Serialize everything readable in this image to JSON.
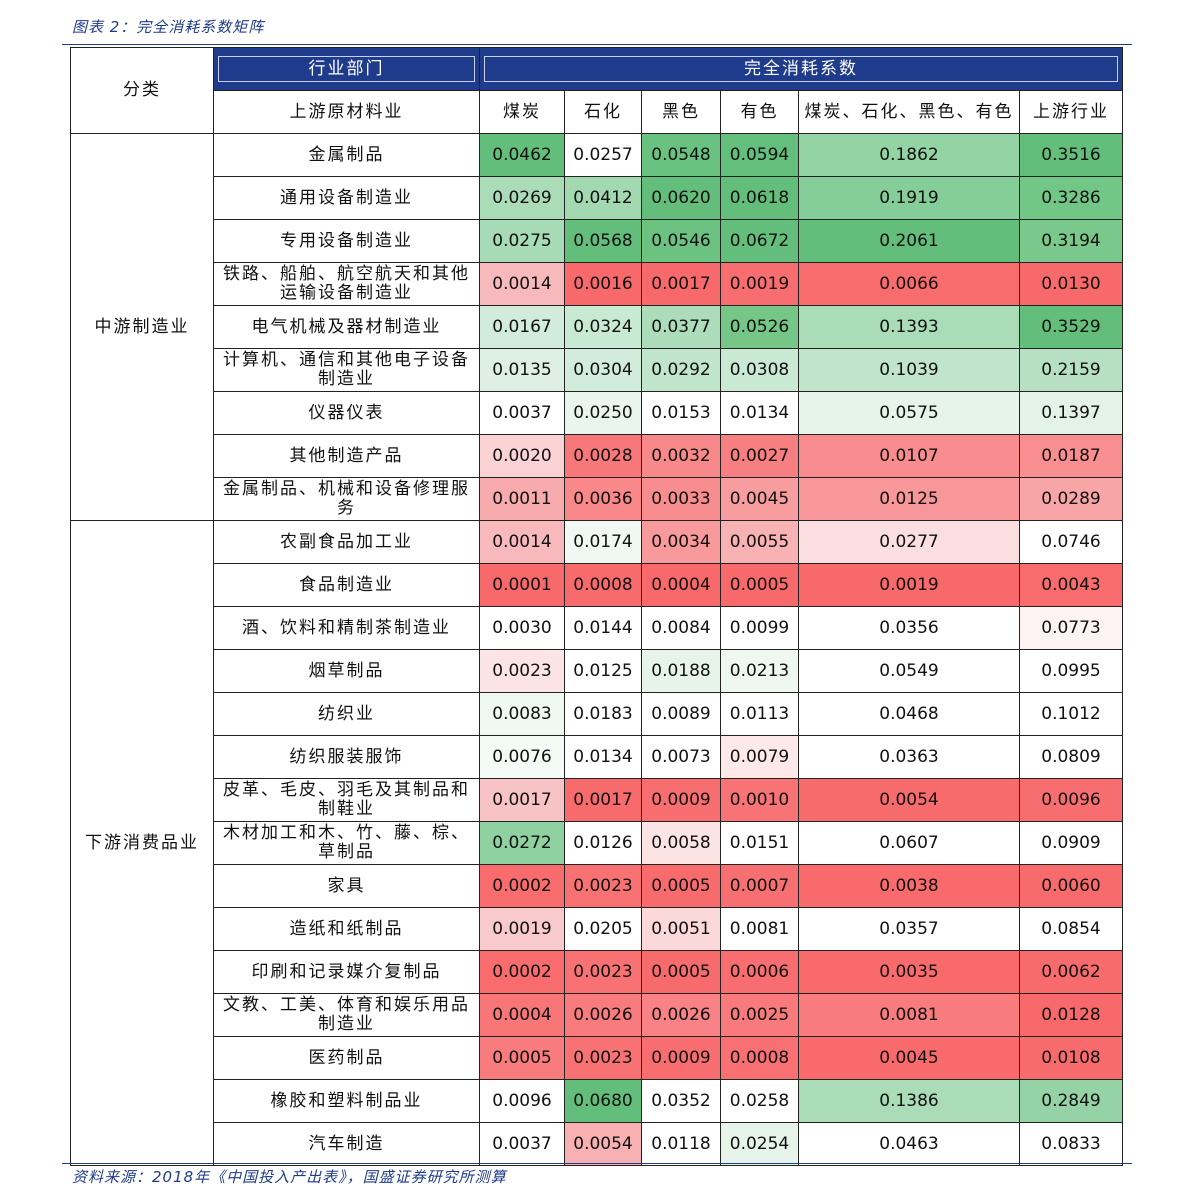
{
  "caption": "图表 2：完全消耗系数矩阵",
  "source": "资料来源：2018年《中国投入产出表》，国盛证券研究所测算",
  "header": {
    "category": "分类",
    "sector": "行业部门",
    "upstream_material": "上游原材料业",
    "coefficient_group": "完全消耗系数",
    "columns": [
      "煤炭",
      "石化",
      "黑色",
      "有色",
      "煤炭、石化、黑色、有色",
      "上游行业"
    ]
  },
  "groups": [
    {
      "name": "中游制造业",
      "rows": [
        {
          "industry": "金属制品",
          "values": [
            "0.0462",
            "0.0257",
            "0.0548",
            "0.0594",
            "0.1862",
            "0.3516"
          ],
          "colors": [
            "#63be7b",
            "#ffffff",
            "#6ac280",
            "#64be7c",
            "#93d3a4",
            "#63be7b"
          ]
        },
        {
          "industry": "通用设备制造业",
          "values": [
            "0.0269",
            "0.0412",
            "0.0620",
            "0.0618",
            "0.1919",
            "0.3286"
          ],
          "colors": [
            "#a9dcb7",
            "#a2d9b1",
            "#63be7b",
            "#63be7b",
            "#85cd99",
            "#72c686"
          ]
        },
        {
          "industry": "专用设备制造业",
          "values": [
            "0.0275",
            "0.0568",
            "0.0546",
            "0.0672",
            "0.2061",
            "0.3194"
          ],
          "colors": [
            "#a6dbb5",
            "#63be7b",
            "#6bc281",
            "#63be7b",
            "#63be7b",
            "#7ac88c"
          ]
        },
        {
          "industry": "铁路、船舶、航空航天和其他运输设备制造业",
          "values": [
            "0.0014",
            "0.0016",
            "0.0017",
            "0.0019",
            "0.0066",
            "0.0130"
          ],
          "colors": [
            "#f7b9bc",
            "#f8696b",
            "#f8696b",
            "#f86e70",
            "#f86c6e",
            "#f8696b"
          ]
        },
        {
          "industry": "电气机械及器材制造业",
          "values": [
            "0.0167",
            "0.0324",
            "0.0377",
            "0.0526",
            "0.1393",
            "0.3529"
          ],
          "colors": [
            "#d2ecdb",
            "#c8e9d2",
            "#acdcba",
            "#75c687",
            "#a9dcb7",
            "#63be7b"
          ]
        },
        {
          "industry": "计算机、通信和其他电子设备制造业",
          "values": [
            "0.0135",
            "0.0304",
            "0.0292",
            "0.0308",
            "0.1039",
            "0.2159"
          ],
          "colors": [
            "#deefe3",
            "#d2ecdb",
            "#c1e5cb",
            "#c9e9d3",
            "#c1e5cb",
            "#b6e0c1"
          ]
        },
        {
          "industry": "仪器仪表",
          "values": [
            "0.0037",
            "0.0250",
            "0.0153",
            "0.0134",
            "0.0575",
            "0.1397"
          ],
          "colors": [
            "#ffffff",
            "#eaf5ee",
            "#ffffff",
            "#ffffff",
            "#e6f4ea",
            "#e3f3e8"
          ]
        },
        {
          "industry": "其他制造产品",
          "values": [
            "0.0020",
            "0.0028",
            "0.0032",
            "0.0027",
            "0.0107",
            "0.0187"
          ],
          "colors": [
            "#fbd3d5",
            "#f8787a",
            "#f8898b",
            "#f87f81",
            "#f88c8e",
            "#f88e90"
          ]
        },
        {
          "industry": "金属制品、机械和设备修理服务",
          "values": [
            "0.0011",
            "0.0036",
            "0.0033",
            "0.0045",
            "0.0125",
            "0.0289"
          ],
          "colors": [
            "#f8abad",
            "#f8888a",
            "#f88d8f",
            "#f89d9f",
            "#f89799",
            "#f8a5a7"
          ]
        }
      ]
    },
    {
      "name": "下游消费品业",
      "rows": [
        {
          "industry": "农副食品加工业",
          "values": [
            "0.0014",
            "0.0174",
            "0.0034",
            "0.0055",
            "0.0277",
            "0.0746"
          ],
          "colors": [
            "#f7b9bc",
            "#f1f8f3",
            "#f8999b",
            "#f8b2b4",
            "#fbdfe0",
            "#ffffff"
          ]
        },
        {
          "industry": "食品制造业",
          "values": [
            "0.0001",
            "0.0008",
            "0.0004",
            "0.0005",
            "0.0019",
            "0.0043"
          ],
          "colors": [
            "#f8696b",
            "#f86b6d",
            "#f8696b",
            "#f8696b",
            "#f8696b",
            "#f86c6e"
          ]
        },
        {
          "industry": "酒、饮料和精制茶制造业",
          "values": [
            "0.0030",
            "0.0144",
            "0.0084",
            "0.0099",
            "0.0356",
            "0.0773"
          ],
          "colors": [
            "#ffffff",
            "#ffffff",
            "#ffffff",
            "#ffffff",
            "#ffffff",
            "#fdf3f3"
          ]
        },
        {
          "industry": "烟草制品",
          "values": [
            "0.0023",
            "0.0125",
            "0.0188",
            "0.0213",
            "0.0549",
            "0.0995"
          ],
          "colors": [
            "#fce3e4",
            "#ffffff",
            "#e6f4ea",
            "#eef8f1",
            "#ffffff",
            "#ffffff"
          ]
        },
        {
          "industry": "纺织业",
          "values": [
            "0.0083",
            "0.0183",
            "0.0089",
            "0.0113",
            "0.0468",
            "0.1012"
          ],
          "colors": [
            "#f0f8f2",
            "#ffffff",
            "#ffffff",
            "#ffffff",
            "#ffffff",
            "#ffffff"
          ]
        },
        {
          "industry": "纺织服装服饰",
          "values": [
            "0.0076",
            "0.0134",
            "0.0073",
            "0.0079",
            "0.0363",
            "0.0809"
          ],
          "colors": [
            "#f4faf6",
            "#ffffff",
            "#ffffff",
            "#fde9ea",
            "#ffffff",
            "#ffffff"
          ]
        },
        {
          "industry": "皮革、毛皮、羽毛及其制品和制鞋业",
          "values": [
            "0.0017",
            "0.0017",
            "0.0009",
            "0.0010",
            "0.0054",
            "0.0096"
          ],
          "colors": [
            "#f8c3c5",
            "#f86b6d",
            "#f86d6f",
            "#f87375",
            "#f86b6d",
            "#f86e70"
          ]
        },
        {
          "industry": "木材加工和木、竹、藤、棕、草制品",
          "values": [
            "0.0272",
            "0.0126",
            "0.0058",
            "0.0151",
            "0.0607",
            "0.0909"
          ],
          "colors": [
            "#8fd1a1",
            "#ffffff",
            "#fce4e5",
            "#ffffff",
            "#ffffff",
            "#ffffff"
          ]
        },
        {
          "industry": "家具",
          "values": [
            "0.0002",
            "0.0023",
            "0.0005",
            "0.0007",
            "0.0038",
            "0.0060"
          ],
          "colors": [
            "#f86c6e",
            "#f87274",
            "#f86b6d",
            "#f86f71",
            "#f86a6c",
            "#f86b6d"
          ]
        },
        {
          "industry": "造纸和纸制品",
          "values": [
            "0.0019",
            "0.0205",
            "0.0051",
            "0.0081",
            "0.0357",
            "0.0854"
          ],
          "colors": [
            "#f8cacc",
            "#ffffff",
            "#fbd8d9",
            "#ffffff",
            "#ffffff",
            "#ffffff"
          ]
        },
        {
          "industry": "印刷和记录媒介复制品",
          "values": [
            "0.0002",
            "0.0023",
            "0.0005",
            "0.0006",
            "0.0035",
            "0.0062"
          ],
          "colors": [
            "#f86c6e",
            "#f87274",
            "#f86b6d",
            "#f86d6f",
            "#f86a6c",
            "#f86b6d"
          ]
        },
        {
          "industry": "文教、工美、体育和娱乐用品制造业",
          "values": [
            "0.0004",
            "0.0026",
            "0.0026",
            "0.0025",
            "0.0081",
            "0.0128"
          ],
          "colors": [
            "#f87678",
            "#f87c7e",
            "#f88285",
            "#f87a7c",
            "#f87b7d",
            "#f8696b"
          ]
        },
        {
          "industry": "医药制品",
          "values": [
            "0.0005",
            "0.0023",
            "0.0009",
            "0.0008",
            "0.0045",
            "0.0108"
          ],
          "colors": [
            "#f87b7d",
            "#f87274",
            "#f86d6f",
            "#f87072",
            "#f86a6c",
            "#f86b6d"
          ]
        },
        {
          "industry": "橡胶和塑料制品业",
          "values": [
            "0.0096",
            "0.0680",
            "0.0352",
            "0.0258",
            "0.1386",
            "0.2849"
          ],
          "colors": [
            "#ffffff",
            "#63be7b",
            "#ffffff",
            "#ffffff",
            "#a9dcb7",
            "#95d3a6"
          ]
        },
        {
          "industry": "汽车制造",
          "values": [
            "0.0037",
            "0.0054",
            "0.0118",
            "0.0254",
            "0.0463",
            "0.0833"
          ],
          "colors": [
            "#ffffff",
            "#f8b1b3",
            "#ffffff",
            "#e6f4ea",
            "#ffffff",
            "#ffffff"
          ]
        }
      ]
    }
  ]
}
